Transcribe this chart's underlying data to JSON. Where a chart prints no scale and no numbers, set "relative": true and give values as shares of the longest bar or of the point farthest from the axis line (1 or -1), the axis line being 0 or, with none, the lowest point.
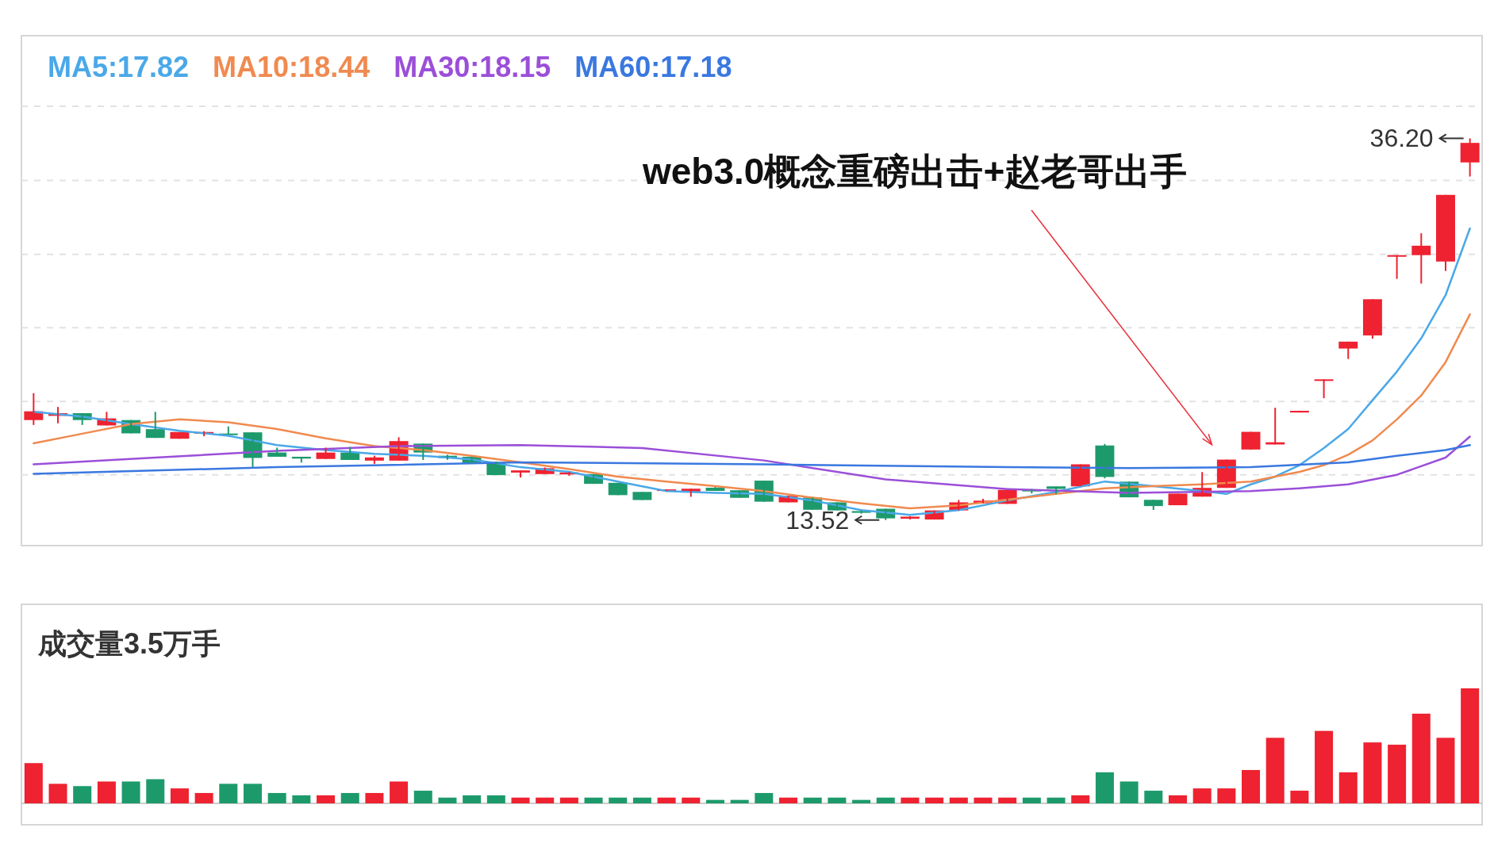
{
  "chart_data": [
    {
      "type": "candlestick",
      "categories": [
        null,
        null,
        null,
        null,
        null,
        null,
        null,
        null,
        null,
        null,
        null,
        null,
        null,
        null,
        null,
        null,
        null,
        null,
        null,
        null,
        null,
        null,
        null,
        null,
        null,
        null,
        null,
        null,
        null,
        null,
        null,
        null,
        null,
        null,
        null,
        null,
        null,
        null,
        null,
        null,
        null,
        null,
        null,
        null,
        null,
        null,
        null,
        null,
        null,
        null,
        null,
        null,
        null,
        null,
        null,
        null,
        null,
        null,
        null,
        null
      ],
      "ohlc": [
        [
          19.46,
          21.06,
          19.17,
          19.98
        ],
        [
          19.71,
          20.24,
          19.27,
          19.87
        ],
        [
          19.87,
          19.87,
          19.17,
          19.46
        ],
        [
          19.14,
          19.95,
          19.14,
          19.56
        ],
        [
          19.46,
          19.46,
          18.67,
          18.67
        ],
        [
          18.92,
          19.95,
          18.4,
          18.4
        ],
        [
          18.35,
          18.75,
          18.35,
          18.75
        ],
        [
          18.7,
          18.8,
          18.5,
          18.75
        ],
        [
          18.66,
          19.08,
          18.6,
          18.64
        ],
        [
          18.73,
          18.73,
          16.67,
          17.21
        ],
        [
          17.53,
          17.82,
          17.28,
          17.28
        ],
        [
          17.28,
          17.28,
          16.94,
          17.17
        ],
        [
          17.15,
          17.82,
          17.15,
          17.53
        ],
        [
          17.53,
          17.86,
          17.09,
          17.09
        ],
        [
          17.05,
          17.34,
          16.86,
          17.24
        ],
        [
          17.05,
          18.44,
          17.05,
          18.21
        ],
        [
          18.06,
          18.06,
          17.09,
          17.53
        ],
        [
          17.34,
          17.4,
          17.1,
          17.21
        ],
        [
          17.28,
          17.28,
          16.86,
          16.86
        ],
        [
          16.96,
          17.0,
          16.19,
          16.19
        ],
        [
          16.34,
          16.47,
          16.05,
          16.47
        ],
        [
          16.25,
          16.64,
          16.25,
          16.6
        ],
        [
          16.23,
          16.38,
          16.15,
          16.35
        ],
        [
          16.25,
          16.25,
          15.67,
          15.67
        ],
        [
          15.73,
          15.73,
          15.0,
          15.0
        ],
        [
          15.19,
          15.19,
          14.71,
          14.71
        ],
        [
          15.25,
          15.34,
          15.25,
          15.34
        ],
        [
          15.21,
          15.38,
          14.9,
          15.38
        ],
        [
          15.44,
          15.48,
          15.25,
          15.25
        ],
        [
          15.29,
          15.29,
          14.84,
          14.84
        ],
        [
          15.86,
          15.86,
          14.61,
          14.61
        ],
        [
          14.57,
          14.96,
          14.57,
          14.96
        ],
        [
          14.86,
          14.86,
          14.13,
          14.13
        ],
        [
          14.57,
          14.57,
          14.09,
          14.09
        ],
        [
          14.05,
          14.1,
          13.9,
          13.95
        ],
        [
          14.19,
          14.19,
          13.52,
          13.62
        ],
        [
          13.6,
          13.75,
          13.55,
          13.72
        ],
        [
          13.55,
          14.09,
          13.55,
          14.09
        ],
        [
          14.09,
          14.71,
          14.09,
          14.57
        ],
        [
          14.51,
          14.78,
          14.51,
          14.67
        ],
        [
          14.48,
          15.31,
          14.48,
          15.31
        ],
        [
          15.34,
          15.36,
          15.1,
          15.22
        ],
        [
          15.52,
          15.52,
          15.06,
          15.37
        ],
        [
          15.52,
          16.83,
          15.52,
          16.83
        ],
        [
          17.95,
          18.04,
          16.0,
          16.08
        ],
        [
          15.8,
          15.8,
          14.87,
          14.87
        ],
        [
          14.72,
          14.72,
          14.12,
          14.35
        ],
        [
          14.4,
          15.09,
          14.4,
          15.09
        ],
        [
          14.91,
          16.37,
          14.91,
          15.43
        ],
        [
          15.43,
          17.11,
          15.43,
          17.11
        ],
        [
          17.71,
          18.76,
          17.71,
          18.76
        ],
        [
          18.01,
          20.19,
          18.01,
          18.14
        ],
        [
          19.91,
          20.01,
          19.91,
          20.01
        ],
        [
          21.85,
          21.88,
          20.76,
          21.88
        ],
        [
          23.71,
          24.12,
          23.09,
          24.12
        ],
        [
          24.49,
          26.64,
          24.3,
          26.64
        ],
        [
          29.22,
          29.26,
          27.85,
          29.26
        ],
        [
          29.26,
          30.56,
          27.57,
          29.82
        ],
        [
          28.88,
          32.84,
          28.32,
          32.84
        ],
        [
          34.77,
          36.2,
          33.93,
          35.93
        ]
      ],
      "colors": [
        "#ee2230",
        "#ee2230",
        "#1d9a6c",
        "#ee2230",
        "#1d9a6c",
        "#1d9a6c",
        "#ee2230",
        "#ee2230",
        "#1d9a6c",
        "#1d9a6c",
        "#1d9a6c",
        "#1d9a6c",
        "#ee2230",
        "#1d9a6c",
        "#ee2230",
        "#ee2230",
        "#1d9a6c",
        "#1d9a6c",
        "#1d9a6c",
        "#1d9a6c",
        "#ee2230",
        "#ee2230",
        "#ee2230",
        "#1d9a6c",
        "#1d9a6c",
        "#1d9a6c",
        "#ee2230",
        "#ee2230",
        "#1d9a6c",
        "#1d9a6c",
        "#1d9a6c",
        "#ee2230",
        "#1d9a6c",
        "#1d9a6c",
        "#1d9a6c",
        "#1d9a6c",
        "#ee2230",
        "#ee2230",
        "#ee2230",
        "#ee2230",
        "#ee2230",
        "#1d9a6c",
        "#1d9a6c",
        "#ee2230",
        "#1d9a6c",
        "#1d9a6c",
        "#1d9a6c",
        "#ee2230",
        "#ee2230",
        "#ee2230",
        "#ee2230",
        "#ee2230",
        "#ee2230",
        "#ee2230",
        "#ee2230",
        "#ee2230",
        "#ee2230",
        "#ee2230",
        "#ee2230",
        "#ee2230"
      ],
      "ylim": [
        12.0,
        42.3
      ],
      "yticks": [
        {
          "value": 16.21,
          "label": null
        },
        {
          "value": 20.56,
          "label": null
        },
        {
          "value": 24.95,
          "label": null
        },
        {
          "value": 29.3,
          "label": null
        },
        {
          "value": 33.7,
          "label": null
        },
        {
          "value": 38.11,
          "label": null
        }
      ],
      "grid": "y",
      "legend": "top left",
      "series": [
        {
          "name": "MA5:17.82",
          "type": "line",
          "color": "#4aa8e8",
          "values": [
            19.95,
            null,
            19.67,
            null,
            19.22,
            null,
            18.82,
            null,
            18.53,
            18.25,
            17.97,
            null,
            17.68,
            null,
            17.46,
            null,
            17.34,
            null,
            17.12,
            null,
            16.66,
            null,
            16.38,
            null,
            15.81,
            null,
            15.24,
            null,
            15.13,
            null,
            15.07,
            null,
            14.68,
            null,
            14.11,
            null,
            13.83,
            null,
            14.11,
            null,
            14.68,
            null,
            15.19,
            null,
            15.81,
            null,
            15.53,
            null,
            15.24,
            15.07,
            15.64,
            16.1,
            16.78,
            17.8,
            18.93,
            20.64,
            22.34,
            24.32,
            26.88,
            30.85
          ]
        },
        {
          "name": "MA10:18.44",
          "type": "line",
          "color": "#f08a50",
          "values": [
            18.08,
            null,
            18.65,
            null,
            19.22,
            null,
            19.5,
            null,
            19.33,
            null,
            18.93,
            null,
            18.37,
            null,
            17.91,
            null,
            17.68,
            null,
            17.34,
            null,
            16.95,
            null,
            16.55,
            null,
            16.1,
            null,
            15.81,
            null,
            15.53,
            null,
            15.24,
            null,
            14.85,
            null,
            14.51,
            null,
            14.22,
            null,
            14.39,
            null,
            14.73,
            null,
            15.07,
            null,
            15.41,
            null,
            15.53,
            null,
            15.64,
            null,
            15.81,
            16.1,
            16.38,
            16.78,
            17.4,
            18.25,
            19.5,
            20.92,
            22.9,
            25.74
          ]
        },
        {
          "name": "MA30:18.15",
          "type": "line",
          "color": "#9b4fd8",
          "values": [
            16.83,
            null,
            null,
            null,
            null,
            17.23,
            null,
            null,
            null,
            null,
            17.63,
            null,
            null,
            null,
            null,
            17.91,
            null,
            null,
            null,
            null,
            17.97,
            null,
            null,
            null,
            null,
            17.8,
            null,
            null,
            null,
            null,
            17.06,
            null,
            null,
            null,
            null,
            15.93,
            null,
            null,
            null,
            null,
            15.36,
            null,
            null,
            null,
            null,
            15.13,
            null,
            null,
            null,
            null,
            15.24,
            null,
            15.41,
            null,
            15.64,
            null,
            16.21,
            null,
            17.23,
            18.48
          ]
        },
        {
          "name": "MA60:17.18",
          "type": "line",
          "color": "#3a78e0",
          "values": [
            16.27,
            null,
            null,
            null,
            null,
            null,
            null,
            null,
            null,
            null,
            16.66,
            null,
            null,
            null,
            null,
            null,
            null,
            null,
            null,
            null,
            16.95,
            null,
            null,
            null,
            null,
            null,
            null,
            null,
            null,
            null,
            16.83,
            null,
            null,
            null,
            null,
            null,
            null,
            null,
            null,
            null,
            16.66,
            null,
            null,
            null,
            null,
            16.61,
            null,
            null,
            null,
            null,
            16.66,
            null,
            null,
            null,
            16.95,
            null,
            17.34,
            null,
            17.68,
            17.97
          ]
        }
      ],
      "annotations": [
        "web3.0概念重磅出击+赵老哥出手",
        "36.20",
        "13.52"
      ]
    },
    {
      "type": "bar",
      "title": "成交量3.5万手",
      "relative": true,
      "categories": [
        null,
        null,
        null,
        null,
        null,
        null,
        null,
        null,
        null,
        null,
        null,
        null,
        null,
        null,
        null,
        null,
        null,
        null,
        null,
        null,
        null,
        null,
        null,
        null,
        null,
        null,
        null,
        null,
        null,
        null,
        null,
        null,
        null,
        null,
        null,
        null,
        null,
        null,
        null,
        null,
        null,
        null,
        null,
        null,
        null,
        null,
        null,
        null,
        null,
        null,
        null,
        null,
        null,
        null,
        null,
        null,
        null,
        null,
        null,
        null
      ],
      "values": [
        0.35,
        0.17,
        0.15,
        0.19,
        0.19,
        0.21,
        0.13,
        0.09,
        0.17,
        0.17,
        0.09,
        0.07,
        0.07,
        0.09,
        0.09,
        0.19,
        0.11,
        0.05,
        0.07,
        0.07,
        0.05,
        0.05,
        0.05,
        0.05,
        0.05,
        0.05,
        0.05,
        0.05,
        0.03,
        0.03,
        0.09,
        0.05,
        0.05,
        0.05,
        0.03,
        0.05,
        0.05,
        0.05,
        0.05,
        0.05,
        0.05,
        0.05,
        0.05,
        0.07,
        0.27,
        0.19,
        0.11,
        0.07,
        0.13,
        0.13,
        0.29,
        0.57,
        0.11,
        0.63,
        0.27,
        0.53,
        0.51,
        0.78,
        0.57,
        1
      ],
      "colors": [
        "#ee2230",
        "#ee2230",
        "#1d9a6c",
        "#ee2230",
        "#1d9a6c",
        "#1d9a6c",
        "#ee2230",
        "#ee2230",
        "#1d9a6c",
        "#1d9a6c",
        "#1d9a6c",
        "#1d9a6c",
        "#ee2230",
        "#1d9a6c",
        "#ee2230",
        "#ee2230",
        "#1d9a6c",
        "#1d9a6c",
        "#1d9a6c",
        "#1d9a6c",
        "#ee2230",
        "#ee2230",
        "#ee2230",
        "#1d9a6c",
        "#1d9a6c",
        "#1d9a6c",
        "#ee2230",
        "#ee2230",
        "#1d9a6c",
        "#1d9a6c",
        "#1d9a6c",
        "#ee2230",
        "#1d9a6c",
        "#1d9a6c",
        "#1d9a6c",
        "#1d9a6c",
        "#ee2230",
        "#ee2230",
        "#ee2230",
        "#ee2230",
        "#ee2230",
        "#1d9a6c",
        "#1d9a6c",
        "#ee2230",
        "#1d9a6c",
        "#1d9a6c",
        "#1d9a6c",
        "#ee2230",
        "#ee2230",
        "#ee2230",
        "#ee2230",
        "#ee2230",
        "#ee2230",
        "#ee2230",
        "#ee2230",
        "#ee2230",
        "#ee2230",
        "#ee2230",
        "#ee2230",
        "#ee2230"
      ]
    }
  ]
}
